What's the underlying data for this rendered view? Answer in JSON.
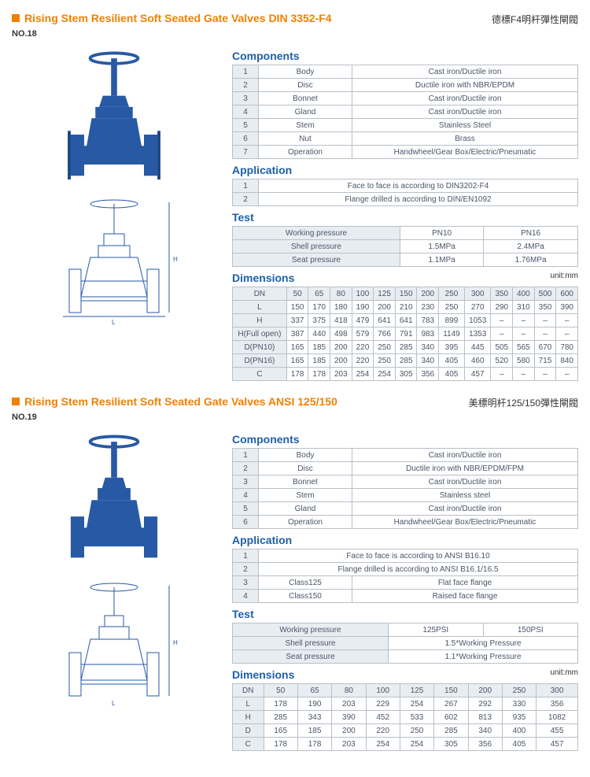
{
  "product1": {
    "title": "Rising Stem Resilient Soft Seated Gate Valves DIN 3352-F4",
    "chinese": "德標F4明杆彈性閘閥",
    "no": "NO.18",
    "components_heading": "Components",
    "components": [
      {
        "n": "1",
        "name": "Body",
        "mat": "Cast iron/Ductile iron"
      },
      {
        "n": "2",
        "name": "Disc",
        "mat": "Ductile iron with NBR/EPDM"
      },
      {
        "n": "3",
        "name": "Bonnet",
        "mat": "Cast iron/Ductile iron"
      },
      {
        "n": "4",
        "name": "Gland",
        "mat": "Cast iron/Ductile iron"
      },
      {
        "n": "5",
        "name": "Stem",
        "mat": "Stainless Steel"
      },
      {
        "n": "6",
        "name": "Nut",
        "mat": "Brass"
      },
      {
        "n": "7",
        "name": "Operation",
        "mat": "Handwheel/Gear Box/Electric/Pneumatic"
      }
    ],
    "application_heading": "Application",
    "application": [
      {
        "n": "1",
        "txt": "Face to face is according to DIN3202-F4"
      },
      {
        "n": "2",
        "txt": "Flange drilled is according to DIN/EN1092"
      }
    ],
    "test_heading": "Test",
    "test_cols": [
      "PN10",
      "PN16"
    ],
    "test_rows": [
      {
        "label": "Working pressure",
        "v": [
          "PN10",
          "PN16"
        ]
      },
      {
        "label": "Shell pressure",
        "v": [
          "1.5MPa",
          "2.4MPa"
        ]
      },
      {
        "label": "Seat pressure",
        "v": [
          "1.1MPa",
          "1.76MPa"
        ]
      }
    ],
    "dimensions_heading": "Dimensions",
    "unit": "unit:mm",
    "dim_cols": [
      "DN",
      "50",
      "65",
      "80",
      "100",
      "125",
      "150",
      "200",
      "250",
      "300",
      "350",
      "400",
      "500",
      "600"
    ],
    "dim_rows": [
      [
        "L",
        "150",
        "170",
        "180",
        "190",
        "200",
        "210",
        "230",
        "250",
        "270",
        "290",
        "310",
        "350",
        "390"
      ],
      [
        "H",
        "337",
        "375",
        "418",
        "479",
        "641",
        "641",
        "783",
        "899",
        "1053",
        "–",
        "–",
        "–",
        "–"
      ],
      [
        "H(Full open)",
        "387",
        "440",
        "498",
        "579",
        "766",
        "791",
        "983",
        "1149",
        "1353",
        "–",
        "–",
        "–",
        "–"
      ],
      [
        "D(PN10)",
        "165",
        "185",
        "200",
        "220",
        "250",
        "285",
        "340",
        "395",
        "445",
        "505",
        "565",
        "670",
        "780"
      ],
      [
        "D(PN16)",
        "165",
        "185",
        "200",
        "220",
        "250",
        "285",
        "340",
        "405",
        "460",
        "520",
        "580",
        "715",
        "840"
      ],
      [
        "C",
        "178",
        "178",
        "203",
        "254",
        "254",
        "305",
        "356",
        "405",
        "457",
        "–",
        "–",
        "–",
        "–"
      ]
    ]
  },
  "product2": {
    "title": "Rising Stem Resilient Soft Seated Gate Valves ANSI 125/150",
    "chinese": "美標明杆125/150彈性閘閥",
    "no": "NO.19",
    "components_heading": "Components",
    "components": [
      {
        "n": "1",
        "name": "Body",
        "mat": "Cast iron/Ductile iron"
      },
      {
        "n": "2",
        "name": "Disc",
        "mat": "Ductile iron with NBR/EPDM/FPM"
      },
      {
        "n": "3",
        "name": "Bonnet",
        "mat": "Cast iron/Ductile iron"
      },
      {
        "n": "4",
        "name": "Stem",
        "mat": "Stainless steel"
      },
      {
        "n": "5",
        "name": "Gland",
        "mat": "Cast iron/Ductile iron"
      },
      {
        "n": "6",
        "name": "Operation",
        "mat": "Handwheel/Gear Box/Electric/Pneumatic"
      }
    ],
    "application_heading": "Application",
    "application": [
      {
        "n": "1",
        "name": "",
        "txt": "Face to face is according to ANSI B16.10"
      },
      {
        "n": "2",
        "name": "",
        "txt": "Flange drilled is according to ANSI B16.1/16.5"
      },
      {
        "n": "3",
        "name": "Class125",
        "txt": "Flat face flange"
      },
      {
        "n": "4",
        "name": "Class150",
        "txt": "Raised face flange"
      }
    ],
    "test_heading": "Test",
    "test_rows": [
      {
        "label": "Working pressure",
        "v": [
          "125PSI",
          "150PSI"
        ]
      },
      {
        "label": "Shell pressure",
        "v": [
          "1.5*Working Pressure"
        ]
      },
      {
        "label": "Seat pressure",
        "v": [
          "1.1*Working Pressure"
        ]
      }
    ],
    "dimensions_heading": "Dimensions",
    "unit": "unit:mm",
    "dim_cols": [
      "DN",
      "50",
      "65",
      "80",
      "100",
      "125",
      "150",
      "200",
      "250",
      "300"
    ],
    "dim_rows": [
      [
        "L",
        "178",
        "190",
        "203",
        "229",
        "254",
        "267",
        "292",
        "330",
        "356"
      ],
      [
        "H",
        "285",
        "343",
        "390",
        "452",
        "533",
        "602",
        "813",
        "935",
        "1082"
      ],
      [
        "D",
        "165",
        "185",
        "200",
        "220",
        "250",
        "285",
        "340",
        "400",
        "455"
      ],
      [
        "C",
        "178",
        "178",
        "203",
        "254",
        "254",
        "305",
        "356",
        "405",
        "457"
      ]
    ]
  },
  "colors": {
    "accent": "#f08000",
    "heading": "#1e5fa8",
    "border": "#b8c0c8",
    "header_bg": "#e8edf2",
    "valve_blue": "#2759a5"
  }
}
